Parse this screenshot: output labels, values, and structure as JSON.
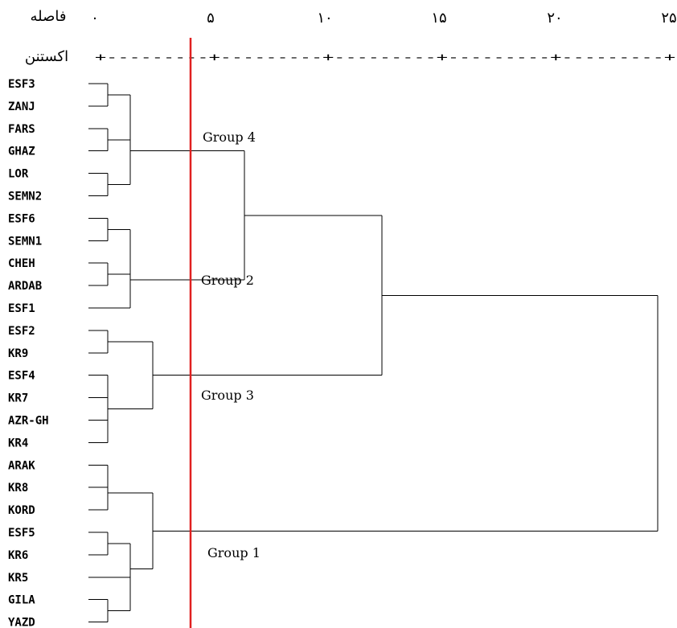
{
  "header": {
    "distance_label": "فاصله",
    "rescaled_label": "اکستنن",
    "ticks": [
      "۰",
      "۵",
      "۱۰",
      "۱۵",
      "۲۰",
      "۲۵"
    ],
    "ruler": "+---------+---------+---------+---------+---------+"
  },
  "leaves": [
    "ESF3",
    "ZANJ",
    "FARS",
    "GHAZ",
    "LOR",
    "SEMN2",
    "ESF6",
    "SEMN1",
    "CHEH",
    "ARDAB",
    "ESF1",
    "ESF2",
    "KR9",
    "ESF4",
    "KR7",
    "AZR-GH",
    "KR4",
    "ARAK",
    "KR8",
    "KORD",
    "ESF5",
    "KR6",
    "KR5",
    "GILA",
    "YAZD"
  ],
  "groups": {
    "g4": "Group 4",
    "g2": "Group 2",
    "g3": "Group 3",
    "g1": "Group 1"
  },
  "colors": {
    "cut_line": "#e02020",
    "edges": "#000000"
  },
  "chart_data": {
    "type": "dendrogram",
    "axis": {
      "range": [
        0,
        25
      ],
      "ticks": [
        0,
        5,
        10,
        15,
        20,
        25
      ]
    },
    "cut_distance": 4,
    "merges": [
      {
        "a": "ESF3",
        "b": "ZANJ",
        "distance": 1
      },
      {
        "a": "FARS",
        "b": "GHAZ",
        "distance": 1
      },
      {
        "a": "LOR",
        "b": "SEMN2",
        "distance": 1
      },
      {
        "a": "ESF6",
        "b": "SEMN1",
        "distance": 1
      },
      {
        "a": "CHEH",
        "b": "ARDAB",
        "distance": 1
      },
      {
        "a": "ESF2",
        "b": "KR9",
        "distance": 1
      },
      {
        "a": "ESF4",
        "b": "KR7",
        "distance": 1
      },
      {
        "a": "AZR-GH",
        "b": "KR4",
        "distance": 1
      },
      {
        "a": "ARAK",
        "b": "KR8",
        "distance": 1
      },
      {
        "a": "ESF5",
        "b": "KR6",
        "distance": 1
      },
      {
        "a": "GILA",
        "b": "YAZD",
        "distance": 1
      },
      {
        "a": "ESF3-ZANJ",
        "b": "FARS-GHAZ",
        "distance": 1.5
      },
      {
        "a": "ESF6-SEMN1",
        "b": "CHEH-ARDAB",
        "distance": 1.5
      },
      {
        "a": "ESF4-KR7",
        "b": "AZR-GH-KR4",
        "distance": 1
      },
      {
        "a": "ARAK-KR8",
        "b": "KORD",
        "distance": 1
      },
      {
        "a": "KR5",
        "b": "GILA-YAZD",
        "distance": 1.5
      },
      {
        "a": "ESF3..GHAZ",
        "b": "LOR-SEMN2",
        "distance": 1.5
      },
      {
        "a": "ESF6..ARDAB",
        "b": "ESF1",
        "distance": 1.5
      },
      {
        "a": "ESF5-KR6",
        "b": "KR5..YAZD",
        "distance": 1
      },
      {
        "a": "ESF2-KR9",
        "b": "ESF4..KR4",
        "distance": 2.5
      },
      {
        "a": "ARAK..KORD",
        "b": "ESF5..YAZD",
        "distance": 2.5
      },
      {
        "a": "Group 4",
        "b": "Group 2",
        "distance": 6.5
      },
      {
        "a": "Group 4+2",
        "b": "Group 3",
        "distance": 12.5
      },
      {
        "a": "Group 4+2+3",
        "b": "Group 1",
        "distance": 24.5
      }
    ]
  }
}
